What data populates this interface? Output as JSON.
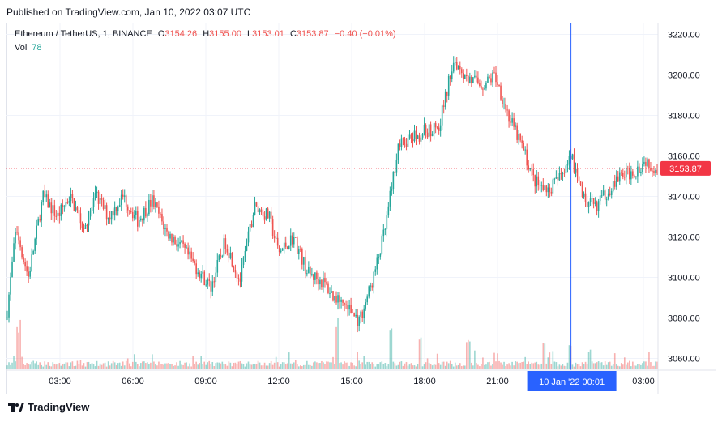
{
  "header": {
    "published": "Published on TradingView.com, Jan 10, 2022 03:07 UTC"
  },
  "legend": {
    "symbol": "Ethereum / TetherUS, 1, BINANCE",
    "o_label": "O",
    "o": "3154.26",
    "h_label": "H",
    "h": "3155.00",
    "l_label": "L",
    "l": "3153.01",
    "c_label": "C",
    "c": "3153.87",
    "change": "−0.40 (−0.01%)",
    "vol_label": "Vol",
    "vol": "78"
  },
  "footer": {
    "brand": "TradingView"
  },
  "colors": {
    "up": "#26a69a",
    "down": "#ef5350",
    "crosshair": "#2962ff",
    "last_price": "#f23645",
    "grid": "#f0f3fa"
  },
  "chart_data": {
    "type": "candlestick",
    "symbol": "Ethereum / TetherUS, 1, BINANCE",
    "interval": "1 minute",
    "ylim": [
      3055,
      3225
    ],
    "y_ticks": [
      3060,
      3080,
      3100,
      3120,
      3140,
      3160,
      3180,
      3200,
      3220
    ],
    "y_tick_labels": [
      "3060.00",
      "3080.00",
      "3100.00",
      "3120.00",
      "3140.00",
      "3160.00",
      "3180.00",
      "3200.00",
      "3220.00"
    ],
    "x_tick_labels": [
      "03:00",
      "06:00",
      "09:00",
      "12:00",
      "15:00",
      "18:00",
      "21:00",
      "03:00"
    ],
    "x_range_hours": [
      0.8,
      27.6
    ],
    "last_price": 3153.87,
    "last_price_label": "3153.87",
    "crosshair_label": "10 Jan '22   00:01",
    "crosshair_hour": 24.02,
    "price_path_hours": [
      0.8,
      1.2,
      1.7,
      2.3,
      2.9,
      3.4,
      4.0,
      4.5,
      5.0,
      5.6,
      6.2,
      6.8,
      7.4,
      8.0,
      8.6,
      9.2,
      9.8,
      10.4,
      11.0,
      11.6,
      12.0,
      12.6,
      13.2,
      13.8,
      14.3,
      14.8,
      15.3,
      15.9,
      16.4,
      16.9,
      17.4,
      18.0,
      18.6,
      19.2,
      19.8,
      20.4,
      20.9,
      21.5,
      22.0,
      22.5,
      23.0,
      23.6,
      24.0,
      24.5,
      25.0,
      25.5,
      26.0,
      26.6,
      27.1,
      27.5
    ],
    "price_path_values": [
      3080,
      3125,
      3100,
      3140,
      3130,
      3140,
      3125,
      3140,
      3130,
      3140,
      3128,
      3138,
      3122,
      3115,
      3105,
      3095,
      3118,
      3098,
      3135,
      3130,
      3112,
      3120,
      3102,
      3098,
      3090,
      3086,
      3078,
      3100,
      3125,
      3165,
      3168,
      3172,
      3175,
      3208,
      3198,
      3195,
      3200,
      3178,
      3165,
      3148,
      3142,
      3150,
      3162,
      3140,
      3135,
      3142,
      3150,
      3152,
      3158,
      3154
    ],
    "volume_scale_max": 800,
    "volume_events": [
      {
        "hour": 1.3,
        "volume": 520
      },
      {
        "hour": 14.4,
        "volume": 560
      },
      {
        "hour": 16.6,
        "volume": 450
      },
      {
        "hour": 17.8,
        "volume": 330
      },
      {
        "hour": 19.8,
        "volume": 360
      },
      {
        "hour": 22.9,
        "volume": 300
      },
      {
        "hour": 24.0,
        "volume": 260
      },
      {
        "hour": 24.8,
        "volume": 230
      }
    ]
  }
}
